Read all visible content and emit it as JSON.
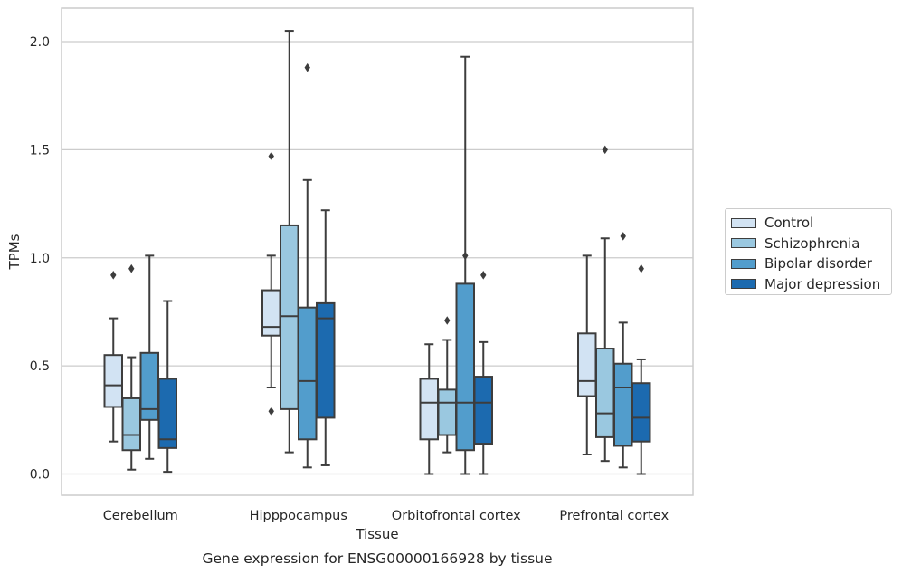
{
  "chart_data": {
    "type": "box",
    "title": "Gene expression for ENSG00000166928 by tissue",
    "xlabel": "Tissue",
    "ylabel": "TPMs",
    "ylim": [
      -0.1,
      2.16
    ],
    "yticks": [
      0.0,
      0.5,
      1.0,
      1.5,
      2.0
    ],
    "ytick_labels": [
      "0.0",
      "0.5",
      "1.0",
      "1.5",
      "2.0"
    ],
    "grid": "horizontal",
    "legend_position": "right",
    "categories": [
      "Cerebellum",
      "Hipppocampus",
      "Orbitofrontal cortex",
      "Prefrontal cortex"
    ],
    "series": [
      {
        "name": "Control",
        "color": "#d2e3f3",
        "boxes": [
          {
            "whislo": 0.15,
            "q1": 0.31,
            "med": 0.41,
            "q3": 0.55,
            "whishi": 0.72,
            "fliers": [
              0.92
            ]
          },
          {
            "whislo": 0.4,
            "q1": 0.64,
            "med": 0.68,
            "q3": 0.85,
            "whishi": 1.01,
            "fliers": [
              0.29,
              1.47
            ]
          },
          {
            "whislo": 0.0,
            "q1": 0.16,
            "med": 0.33,
            "q3": 0.44,
            "whishi": 0.6,
            "fliers": []
          },
          {
            "whislo": 0.09,
            "q1": 0.36,
            "med": 0.43,
            "q3": 0.65,
            "whishi": 1.01,
            "fliers": []
          }
        ]
      },
      {
        "name": "Schizophrenia",
        "color": "#9ac8e0",
        "boxes": [
          {
            "whislo": 0.02,
            "q1": 0.11,
            "med": 0.18,
            "q3": 0.35,
            "whishi": 0.54,
            "fliers": [
              0.95
            ]
          },
          {
            "whislo": 0.1,
            "q1": 0.3,
            "med": 0.73,
            "q3": 1.15,
            "whishi": 2.05,
            "fliers": []
          },
          {
            "whislo": 0.1,
            "q1": 0.18,
            "med": 0.33,
            "q3": 0.39,
            "whishi": 0.62,
            "fliers": [
              0.71
            ]
          },
          {
            "whislo": 0.06,
            "q1": 0.17,
            "med": 0.28,
            "q3": 0.58,
            "whishi": 1.09,
            "fliers": [
              1.5
            ]
          }
        ]
      },
      {
        "name": "Bipolar disorder",
        "color": "#529dcc",
        "boxes": [
          {
            "whislo": 0.07,
            "q1": 0.25,
            "med": 0.3,
            "q3": 0.56,
            "whishi": 1.01,
            "fliers": []
          },
          {
            "whislo": 0.03,
            "q1": 0.16,
            "med": 0.43,
            "q3": 0.77,
            "whishi": 1.36,
            "fliers": [
              1.88
            ]
          },
          {
            "whislo": 0.0,
            "q1": 0.11,
            "med": 0.33,
            "q3": 0.88,
            "whishi": 1.93,
            "fliers": [
              1.01
            ]
          },
          {
            "whislo": 0.03,
            "q1": 0.13,
            "med": 0.4,
            "q3": 0.51,
            "whishi": 0.7,
            "fliers": [
              1.1
            ]
          }
        ]
      },
      {
        "name": "Major depression",
        "color": "#1c6aaf",
        "boxes": [
          {
            "whislo": 0.01,
            "q1": 0.12,
            "med": 0.16,
            "q3": 0.44,
            "whishi": 0.8,
            "fliers": []
          },
          {
            "whislo": 0.04,
            "q1": 0.26,
            "med": 0.72,
            "q3": 0.79,
            "whishi": 1.22,
            "fliers": []
          },
          {
            "whislo": 0.0,
            "q1": 0.14,
            "med": 0.33,
            "q3": 0.45,
            "whishi": 0.61,
            "fliers": [
              0.92
            ]
          },
          {
            "whislo": 0.0,
            "q1": 0.15,
            "med": 0.26,
            "q3": 0.42,
            "whishi": 0.53,
            "fliers": [
              0.95
            ]
          }
        ]
      }
    ]
  }
}
